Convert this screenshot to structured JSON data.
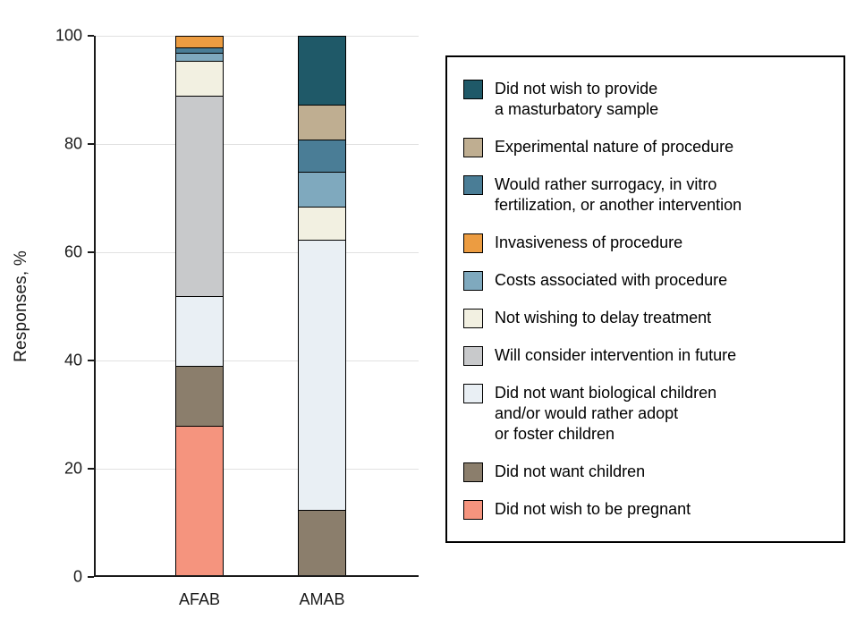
{
  "chart_data": {
    "type": "stacked_bar",
    "title": "",
    "xlabel": "",
    "ylabel": "Responses, %",
    "ylim": [
      0,
      100
    ],
    "yticks": [
      0,
      20,
      40,
      60,
      80,
      100
    ],
    "grid": "horizontal",
    "legend_position": "right-boxed",
    "categories": [
      "AFAB",
      "AMAB"
    ],
    "stack_order": "bottom_to_top",
    "series": [
      {
        "name": "Did not wish to be pregnant",
        "color": "#F5947E",
        "values": [
          28,
          0
        ],
        "legend_lines": [
          "Did not wish to be pregnant"
        ]
      },
      {
        "name": "Did not want children",
        "color": "#8B7E6C",
        "values": [
          11,
          12.5
        ],
        "legend_lines": [
          "Did not want children"
        ]
      },
      {
        "name": "Did not want biological children and/or would rather adopt or foster children",
        "color": "#E9EFF4",
        "values": [
          13,
          50
        ],
        "legend_lines": [
          "Did not want biological children",
          "and/or would rather adopt",
          "or foster children"
        ]
      },
      {
        "name": "Will consider intervention in future",
        "color": "#C8C9CB",
        "values": [
          37,
          0
        ],
        "legend_lines": [
          "Will consider intervention in future"
        ]
      },
      {
        "name": "Not wishing to delay treatment",
        "color": "#F2F0E1",
        "values": [
          6.5,
          6
        ],
        "legend_lines": [
          "Not wishing to delay treatment"
        ]
      },
      {
        "name": "Costs associated with procedure",
        "color": "#7FA9BE",
        "values": [
          1.5,
          6.5
        ],
        "legend_lines": [
          "Costs associated with procedure"
        ]
      },
      {
        "name": "Would rather surrogacy, in vitro fertilization, or another intervention",
        "color": "#4A7D96",
        "values": [
          1,
          6
        ],
        "legend_lines": [
          "Would rather surrogacy, in vitro",
          "fertilization, or another intervention"
        ]
      },
      {
        "name": "Invasiveness of procedure",
        "color": "#EC9C41",
        "values": [
          2,
          0
        ],
        "legend_lines": [
          "Invasiveness of procedure"
        ]
      },
      {
        "name": "Experimental nature of procedure",
        "color": "#BFAE91",
        "values": [
          0,
          6.5
        ],
        "legend_lines": [
          "Experimental nature of procedure"
        ]
      },
      {
        "name": "Did not wish to provide a masturbatory sample",
        "color": "#1F5968",
        "values": [
          0,
          12.5
        ],
        "legend_lines": [
          "Did not wish to provide",
          "a masturbatory sample"
        ]
      }
    ],
    "legend_order_top_to_bottom": [
      "Did not wish to provide a masturbatory sample",
      "Experimental nature of procedure",
      "Would rather surrogacy, in vitro fertilization, or another intervention",
      "Invasiveness of procedure",
      "Costs associated with procedure",
      "Not wishing to delay treatment",
      "Will consider intervention in future",
      "Did not want biological children and/or would rather adopt or foster children",
      "Did not want children",
      "Did not wish to be pregnant"
    ]
  }
}
